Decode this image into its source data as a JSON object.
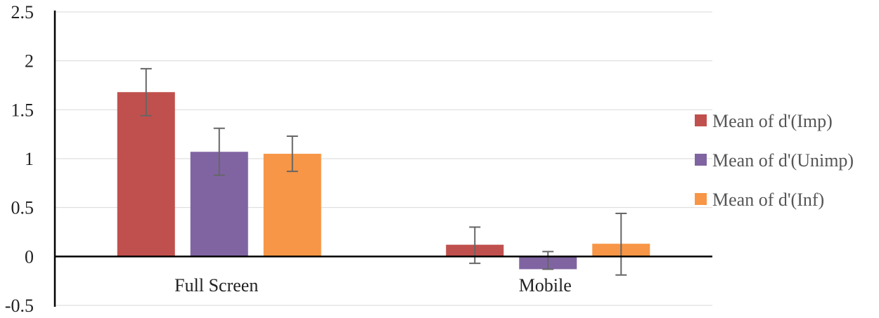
{
  "chart_data": {
    "type": "bar",
    "categories": [
      "Full Screen",
      "Mobile"
    ],
    "series": [
      {
        "name": "Mean of d'(Imp)",
        "color": "#c0504d",
        "values": [
          1.68,
          0.12
        ],
        "error_low": [
          1.44,
          -0.07
        ],
        "error_high": [
          1.92,
          0.3
        ]
      },
      {
        "name": "Mean of d'(Unimp)",
        "color": "#8064a2",
        "values": [
          1.07,
          -0.13
        ],
        "error_low": [
          0.83,
          -0.13
        ],
        "error_high": [
          1.31,
          0.05
        ]
      },
      {
        "name": "Mean of d'(Inf)",
        "color": "#f79646",
        "values": [
          1.05,
          0.13
        ],
        "error_low": [
          0.87,
          -0.19
        ],
        "error_high": [
          1.23,
          0.44
        ]
      }
    ],
    "ylim": [
      -0.5,
      2.5
    ],
    "yticks": [
      "2.5",
      "2",
      "1.5",
      "1",
      "0.5",
      "0",
      "-0.5"
    ],
    "grid": true,
    "legend": "right",
    "title": "",
    "xlabel": "",
    "ylabel": ""
  }
}
